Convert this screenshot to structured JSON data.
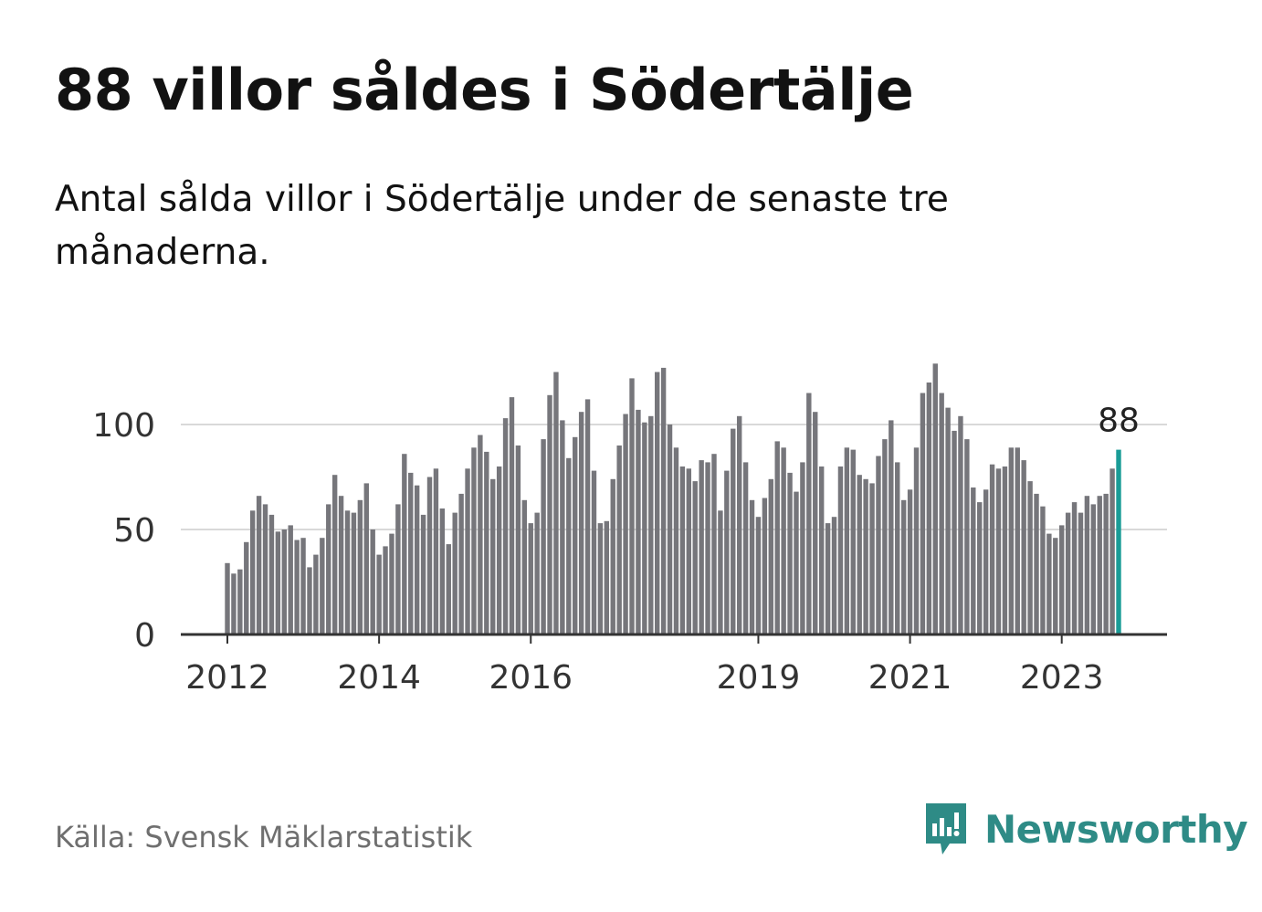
{
  "header": {
    "title": "88 villor såldes i Södertälje",
    "subtitle": "Antal sålda villor i Södertälje under de senaste tre månaderna."
  },
  "footer": {
    "source": "Källa: Svensk Mäklarstatistik",
    "brand": "Newsworthy",
    "brand_icon": "newsworthy-logo-icon"
  },
  "colors": {
    "bar": "#76767b",
    "highlight": "#1a9c97",
    "grid": "#d9d9d9",
    "axis": "#333333",
    "brand": "#2e8b86"
  },
  "chart_data": {
    "type": "bar",
    "title": "88 villor såldes i Södertälje",
    "xlabel": "",
    "ylabel": "",
    "ylim": [
      0,
      140
    ],
    "yticks": [
      0,
      50,
      100
    ],
    "grid": true,
    "start": "2012-01",
    "xtick_labels": [
      {
        "label": "2012",
        "index": 0
      },
      {
        "label": "2014",
        "index": 24
      },
      {
        "label": "2016",
        "index": 48
      },
      {
        "label": "2019",
        "index": 84
      },
      {
        "label": "2021",
        "index": 108
      },
      {
        "label": "2023",
        "index": 132
      }
    ],
    "highlight_label": "88",
    "values": [
      34,
      29,
      31,
      44,
      59,
      66,
      62,
      57,
      49,
      50,
      52,
      45,
      46,
      32,
      38,
      46,
      62,
      76,
      66,
      59,
      58,
      64,
      72,
      50,
      38,
      42,
      48,
      62,
      86,
      77,
      71,
      57,
      75,
      79,
      60,
      43,
      58,
      67,
      79,
      89,
      95,
      87,
      74,
      80,
      103,
      113,
      90,
      64,
      53,
      58,
      93,
      114,
      125,
      102,
      84,
      94,
      106,
      112,
      78,
      53,
      54,
      74,
      90,
      105,
      122,
      107,
      101,
      104,
      125,
      127,
      100,
      89,
      80,
      79,
      73,
      83,
      82,
      86,
      59,
      78,
      98,
      104,
      82,
      64,
      56,
      65,
      74,
      92,
      89,
      77,
      68,
      82,
      115,
      106,
      80,
      53,
      56,
      80,
      89,
      88,
      76,
      74,
      72,
      85,
      93,
      102,
      82,
      64,
      69,
      89,
      115,
      120,
      129,
      115,
      108,
      97,
      104,
      93,
      70,
      63,
      69,
      81,
      79,
      80,
      89,
      89,
      83,
      73,
      67,
      61,
      48,
      46,
      52,
      58,
      63,
      58,
      66,
      62,
      66,
      67,
      79,
      88
    ]
  }
}
